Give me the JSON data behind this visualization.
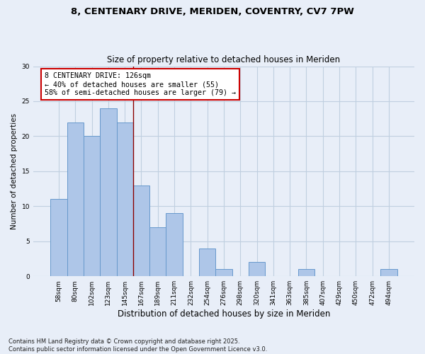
{
  "title1": "8, CENTENARY DRIVE, MERIDEN, COVENTRY, CV7 7PW",
  "title2": "Size of property relative to detached houses in Meriden",
  "xlabel": "Distribution of detached houses by size in Meriden",
  "ylabel": "Number of detached properties",
  "categories": [
    "58sqm",
    "80sqm",
    "102sqm",
    "123sqm",
    "145sqm",
    "167sqm",
    "189sqm",
    "211sqm",
    "232sqm",
    "254sqm",
    "276sqm",
    "298sqm",
    "320sqm",
    "341sqm",
    "363sqm",
    "385sqm",
    "407sqm",
    "429sqm",
    "450sqm",
    "472sqm",
    "494sqm"
  ],
  "values": [
    11,
    22,
    20,
    24,
    22,
    13,
    7,
    9,
    0,
    4,
    1,
    0,
    2,
    0,
    0,
    1,
    0,
    0,
    0,
    0,
    1
  ],
  "bar_color": "#aec6e8",
  "bar_edge_color": "#6699cc",
  "vline_x_index": 4.5,
  "vline_color": "#8b0000",
  "annotation_text": "8 CENTENARY DRIVE: 126sqm\n← 40% of detached houses are smaller (55)\n58% of semi-detached houses are larger (79) →",
  "annotation_box_color": "#ffffff",
  "annotation_box_edge_color": "#cc0000",
  "yticks": [
    0,
    5,
    10,
    15,
    20,
    25,
    30
  ],
  "ylim": [
    0,
    30
  ],
  "footer": "Contains HM Land Registry data © Crown copyright and database right 2025.\nContains public sector information licensed under the Open Government Licence v3.0.",
  "bg_color": "#e8eef8",
  "grid_color": "#c0cfe0"
}
